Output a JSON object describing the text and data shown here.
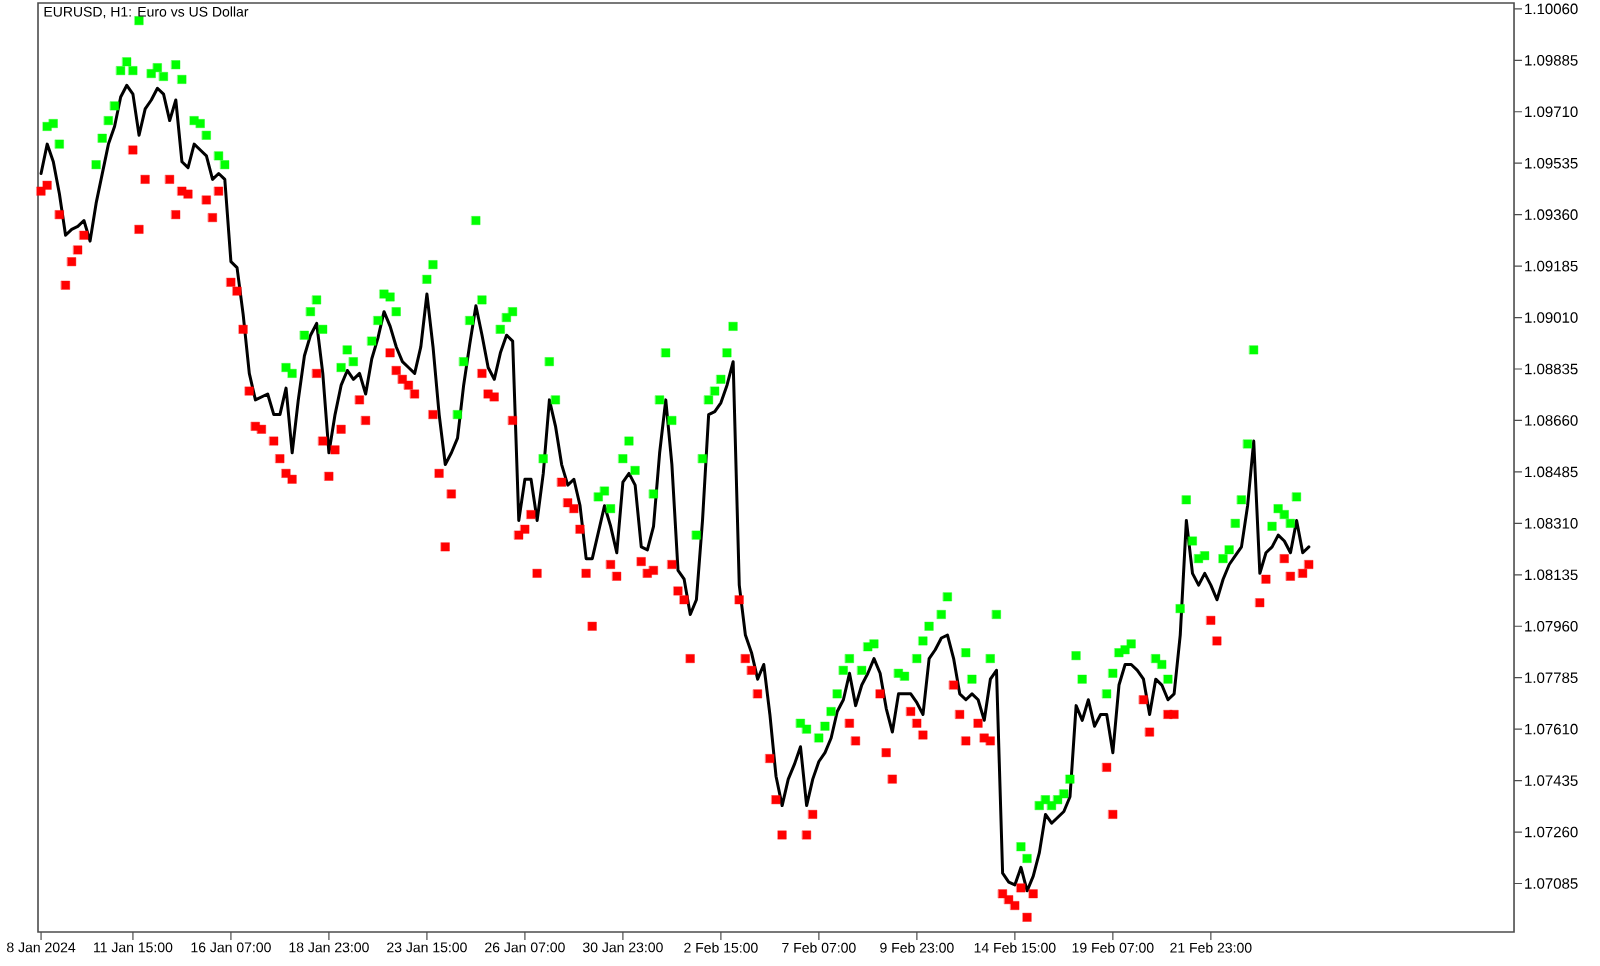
{
  "chart_data": {
    "type": "line",
    "title": "EURUSD, H1: Euro vs US Dollar",
    "line_style": "solid",
    "categories": [
      "8 Jan 2024",
      null,
      null,
      null,
      null,
      null,
      null,
      null,
      null,
      null,
      null,
      null,
      null,
      null,
      null,
      "11 Jan 15:00",
      null,
      null,
      null,
      null,
      null,
      null,
      null,
      null,
      null,
      null,
      null,
      null,
      null,
      null,
      null,
      "16 Jan 07:00",
      null,
      null,
      null,
      null,
      null,
      null,
      null,
      null,
      null,
      null,
      null,
      null,
      null,
      null,
      null,
      "18 Jan 23:00",
      null,
      null,
      null,
      null,
      null,
      null,
      null,
      null,
      null,
      null,
      null,
      null,
      null,
      null,
      null,
      "23 Jan 15:00",
      null,
      null,
      null,
      null,
      null,
      null,
      null,
      null,
      null,
      null,
      null,
      null,
      null,
      null,
      null,
      "26 Jan 07:00",
      null,
      null,
      null,
      null,
      null,
      null,
      null,
      null,
      null,
      null,
      null,
      null,
      null,
      null,
      null,
      "30 Jan 23:00",
      null,
      null,
      null,
      null,
      null,
      null,
      null,
      null,
      null,
      null,
      null,
      null,
      null,
      null,
      null,
      "2 Feb 15:00",
      null,
      null,
      null,
      null,
      null,
      null,
      null,
      null,
      null,
      null,
      null,
      null,
      null,
      null,
      null,
      "7 Feb 07:00",
      null,
      null,
      null,
      null,
      null,
      null,
      null,
      null,
      null,
      null,
      null,
      null,
      null,
      null,
      null,
      "9 Feb 23:00",
      null,
      null,
      null,
      null,
      null,
      null,
      null,
      null,
      null,
      null,
      null,
      null,
      null,
      null,
      null,
      "14 Feb 15:00",
      null,
      null,
      null,
      null,
      null,
      null,
      null,
      null,
      null,
      null,
      null,
      null,
      null,
      null,
      null,
      "19 Feb 07:00",
      null,
      null,
      null,
      null,
      null,
      null,
      null,
      null,
      null,
      null,
      null,
      null,
      null,
      null,
      null,
      "21 Feb 23:00",
      null,
      null,
      null,
      null,
      null,
      null,
      null,
      null,
      null,
      null,
      null,
      null,
      null,
      null,
      null,
      null,
      null,
      null,
      null,
      null,
      null,
      null,
      null,
      null,
      null,
      null,
      null,
      null,
      null,
      null,
      null,
      null,
      null,
      null,
      null,
      null,
      null,
      null,
      null,
      null,
      null,
      null,
      null,
      null,
      null,
      null,
      null,
      null,
      null
    ],
    "ylim": [
      1.0692,
      1.1008
    ],
    "yticks": [
      {
        "value": 1.1006,
        "label": "1.10060"
      },
      1.09885,
      {
        "value": 1.0971,
        "label": "1.09710"
      },
      1.09535,
      {
        "value": 1.0936,
        "label": "1.09360"
      },
      1.09185,
      {
        "value": 1.0901,
        "label": "1.09010"
      },
      1.08835,
      {
        "value": 1.0866,
        "label": "1.08660"
      },
      1.08485,
      {
        "value": 1.0831,
        "label": "1.08310"
      },
      1.08135,
      {
        "value": 1.0796,
        "label": "1.07960"
      },
      1.07785,
      {
        "value": 1.0761,
        "label": "1.07610"
      },
      1.07435,
      {
        "value": 1.0726,
        "label": "1.07260"
      },
      1.07085
    ],
    "series": [
      {
        "color": "#000000",
        "values": [
          1.095,
          1.096,
          1.0954,
          1.0943,
          1.0929,
          1.0931,
          1.0932,
          1.0934,
          1.0927,
          1.094,
          1.095,
          1.096,
          1.0966,
          1.0976,
          1.098,
          1.0977,
          1.0963,
          1.0972,
          1.0975,
          1.0979,
          1.0977,
          1.0968,
          1.0975,
          1.0954,
          1.0952,
          1.096,
          1.0958,
          1.0956,
          1.0948,
          1.095,
          1.0948,
          1.092,
          1.0918,
          1.0902,
          1.0882,
          1.0873,
          1.0874,
          1.0875,
          1.0868,
          1.0868,
          1.0877,
          1.0855,
          1.0873,
          1.0888,
          1.0895,
          1.0899,
          1.0882,
          1.0855,
          1.0868,
          1.0878,
          1.0883,
          1.088,
          1.0882,
          1.0875,
          1.0887,
          1.0894,
          1.0903,
          1.0898,
          1.0891,
          1.0886,
          1.0884,
          1.0882,
          1.0891,
          1.0909,
          1.0891,
          1.0868,
          1.0851,
          1.0855,
          1.086,
          1.0878,
          1.0892,
          1.0905,
          1.0895,
          1.0884,
          1.088,
          1.0889,
          1.0895,
          1.0893,
          1.0832,
          1.0846,
          1.0846,
          1.0832,
          1.0848,
          1.0873,
          1.0864,
          1.0851,
          1.0844,
          1.0846,
          1.0837,
          1.0819,
          1.0819,
          1.0828,
          1.0837,
          1.083,
          1.0821,
          1.0845,
          1.0848,
          1.0844,
          1.0823,
          1.0822,
          1.083,
          1.0855,
          1.0873,
          1.0851,
          1.0815,
          1.0812,
          1.08,
          1.0805,
          1.0832,
          1.0868,
          1.0869,
          1.0872,
          1.0878,
          1.0886,
          1.081,
          1.0793,
          1.0787,
          1.0778,
          1.0783,
          1.0766,
          1.0745,
          1.0735,
          1.0744,
          1.0749,
          1.0755,
          1.0735,
          1.0744,
          1.075,
          1.0753,
          1.0758,
          1.0767,
          1.0771,
          1.078,
          1.0769,
          1.0776,
          1.078,
          1.0785,
          1.078,
          1.0768,
          1.076,
          1.0773,
          1.0773,
          1.0773,
          1.077,
          1.0766,
          1.0785,
          1.0788,
          1.0792,
          1.0793,
          1.0785,
          1.0773,
          1.0771,
          1.0773,
          1.0771,
          1.0764,
          1.0778,
          1.0781,
          1.0712,
          1.0709,
          1.0708,
          1.0714,
          1.0706,
          1.0711,
          1.0719,
          1.0732,
          1.0729,
          1.0731,
          1.0733,
          1.0738,
          1.0769,
          1.0764,
          1.0771,
          1.0762,
          1.0766,
          1.0766,
          1.0753,
          1.0776,
          1.0783,
          1.0783,
          1.0781,
          1.0778,
          1.0766,
          1.0778,
          1.0776,
          1.0771,
          1.0773,
          1.0793,
          1.0832,
          1.0814,
          1.081,
          1.0814,
          1.081,
          1.0805,
          1.0812,
          1.0817,
          1.082,
          1.0823,
          1.0837,
          1.0859,
          1.0814,
          1.0821,
          1.0823,
          1.0827,
          1.0825,
          1.0821,
          1.0832,
          1.0821,
          1.0823,
          null,
          null,
          null,
          null,
          null,
          null,
          null,
          null,
          null,
          null,
          null,
          null,
          null,
          null,
          null,
          null,
          null,
          null,
          null,
          null,
          null,
          null,
          null,
          null,
          null,
          null,
          null,
          null,
          null,
          null,
          null,
          null,
          null
        ]
      },
      {
        "type": "scatter",
        "marker": "square",
        "color": "#00ff00",
        "values": [
          null,
          1.0966,
          1.0967,
          1.096,
          null,
          null,
          null,
          null,
          null,
          1.0953,
          1.0962,
          1.0968,
          1.0973,
          1.0985,
          1.0988,
          1.0985,
          1.1002,
          null,
          1.0984,
          1.0986,
          1.0983,
          null,
          1.0987,
          1.0982,
          null,
          1.0968,
          1.0967,
          1.0963,
          null,
          1.0956,
          1.0953,
          null,
          null,
          null,
          null,
          null,
          null,
          null,
          null,
          null,
          1.0884,
          1.0882,
          null,
          1.0895,
          1.0903,
          1.0907,
          1.0897,
          null,
          null,
          1.0884,
          1.089,
          1.0886,
          null,
          null,
          1.0893,
          1.09,
          1.0909,
          1.0908,
          1.0903,
          null,
          null,
          null,
          null,
          1.0914,
          1.0919,
          null,
          null,
          null,
          1.0868,
          1.0886,
          1.09,
          1.0934,
          1.0907,
          null,
          null,
          1.0897,
          1.0901,
          1.0903,
          null,
          null,
          null,
          null,
          1.0853,
          1.0886,
          1.0873,
          null,
          null,
          null,
          null,
          null,
          null,
          1.084,
          1.0842,
          1.0836,
          null,
          1.0853,
          1.0859,
          1.0849,
          null,
          null,
          1.0841,
          1.0873,
          1.0889,
          1.0866,
          null,
          null,
          null,
          1.0827,
          1.0853,
          1.0873,
          1.0876,
          1.088,
          1.0889,
          1.0898,
          null,
          null,
          null,
          null,
          null,
          null,
          null,
          null,
          null,
          null,
          1.0763,
          1.0761,
          null,
          1.0758,
          1.0762,
          1.0767,
          1.0773,
          1.0781,
          1.0785,
          null,
          1.0781,
          1.0789,
          1.079,
          null,
          null,
          null,
          1.078,
          1.0779,
          null,
          1.0785,
          1.0791,
          1.0796,
          null,
          1.08,
          1.0806,
          null,
          null,
          1.0787,
          1.0778,
          null,
          null,
          1.0785,
          1.08,
          null,
          null,
          null,
          1.0721,
          1.0717,
          null,
          1.0735,
          1.0737,
          1.0735,
          1.0737,
          1.0739,
          1.0744,
          1.0786,
          1.0778,
          null,
          null,
          null,
          1.0773,
          1.078,
          1.0787,
          1.0788,
          1.079,
          null,
          null,
          null,
          1.0785,
          1.0783,
          1.0778,
          null,
          1.0802,
          1.0839,
          1.0825,
          1.0819,
          1.082,
          null,
          null,
          1.0819,
          1.0822,
          1.0831,
          1.0839,
          1.0858,
          1.089,
          null,
          null,
          1.083,
          1.0836,
          1.0834,
          1.0831,
          1.084,
          null,
          null,
          null,
          null,
          null,
          null,
          null,
          null,
          null,
          null,
          null,
          null,
          null,
          null,
          null,
          null,
          null,
          null,
          null,
          null,
          null,
          null,
          null,
          null,
          null,
          null,
          null,
          null,
          null,
          null,
          null,
          null,
          null,
          null,
          null
        ]
      },
      {
        "type": "scatter",
        "marker": "square",
        "color": "#ff0000",
        "values": [
          1.0944,
          1.0946,
          null,
          1.0936,
          1.0912,
          1.092,
          1.0924,
          1.0929,
          null,
          null,
          null,
          null,
          null,
          null,
          null,
          1.0958,
          1.0931,
          1.0948,
          null,
          null,
          null,
          1.0948,
          1.0936,
          1.0944,
          1.0943,
          null,
          null,
          1.0941,
          1.0935,
          1.0944,
          null,
          1.0913,
          1.091,
          1.0897,
          1.0876,
          1.0864,
          1.0863,
          null,
          1.0859,
          1.0853,
          1.0848,
          1.0846,
          null,
          null,
          null,
          1.0882,
          1.0859,
          1.0847,
          1.0856,
          1.0863,
          null,
          null,
          1.0873,
          1.0866,
          null,
          null,
          null,
          1.0889,
          1.0883,
          1.088,
          1.0878,
          1.0875,
          null,
          null,
          1.0868,
          1.0848,
          1.0823,
          1.0841,
          null,
          null,
          null,
          null,
          1.0882,
          1.0875,
          1.0874,
          null,
          null,
          1.0866,
          1.0827,
          1.0829,
          1.0834,
          1.0814,
          null,
          null,
          null,
          1.0845,
          1.0838,
          1.0836,
          1.0829,
          1.0814,
          1.0796,
          null,
          null,
          1.0817,
          1.0813,
          null,
          null,
          null,
          1.0818,
          1.0814,
          1.0815,
          null,
          null,
          1.0817,
          1.0808,
          1.0805,
          1.0785,
          null,
          null,
          null,
          null,
          null,
          null,
          null,
          1.0805,
          1.0785,
          1.0781,
          1.0773,
          null,
          1.0751,
          1.0737,
          1.0725,
          null,
          null,
          null,
          1.0725,
          1.0732,
          null,
          null,
          null,
          null,
          null,
          1.0763,
          1.0757,
          null,
          null,
          null,
          1.0773,
          1.0753,
          1.0744,
          null,
          null,
          1.0767,
          1.0763,
          1.0759,
          null,
          null,
          null,
          null,
          1.0776,
          1.0766,
          1.0757,
          null,
          1.0763,
          1.0758,
          1.0757,
          null,
          1.0705,
          1.0703,
          1.0701,
          1.0707,
          1.0697,
          1.0705,
          null,
          null,
          null,
          null,
          null,
          null,
          null,
          null,
          null,
          null,
          null,
          1.0748,
          1.0732,
          null,
          null,
          null,
          null,
          1.0771,
          1.076,
          null,
          null,
          1.0766,
          1.0766,
          null,
          null,
          null,
          null,
          null,
          1.0798,
          1.0791,
          null,
          null,
          null,
          null,
          null,
          null,
          1.0804,
          1.0812,
          null,
          null,
          1.0819,
          1.0813,
          null,
          1.0814,
          1.0817,
          null,
          null,
          null,
          null,
          null,
          null,
          null,
          null,
          null,
          null,
          null,
          null,
          null,
          null,
          null,
          null,
          null,
          null,
          null,
          null,
          null,
          null,
          null,
          null,
          null,
          null,
          null,
          null,
          null,
          null,
          null,
          null,
          null
        ]
      }
    ]
  }
}
